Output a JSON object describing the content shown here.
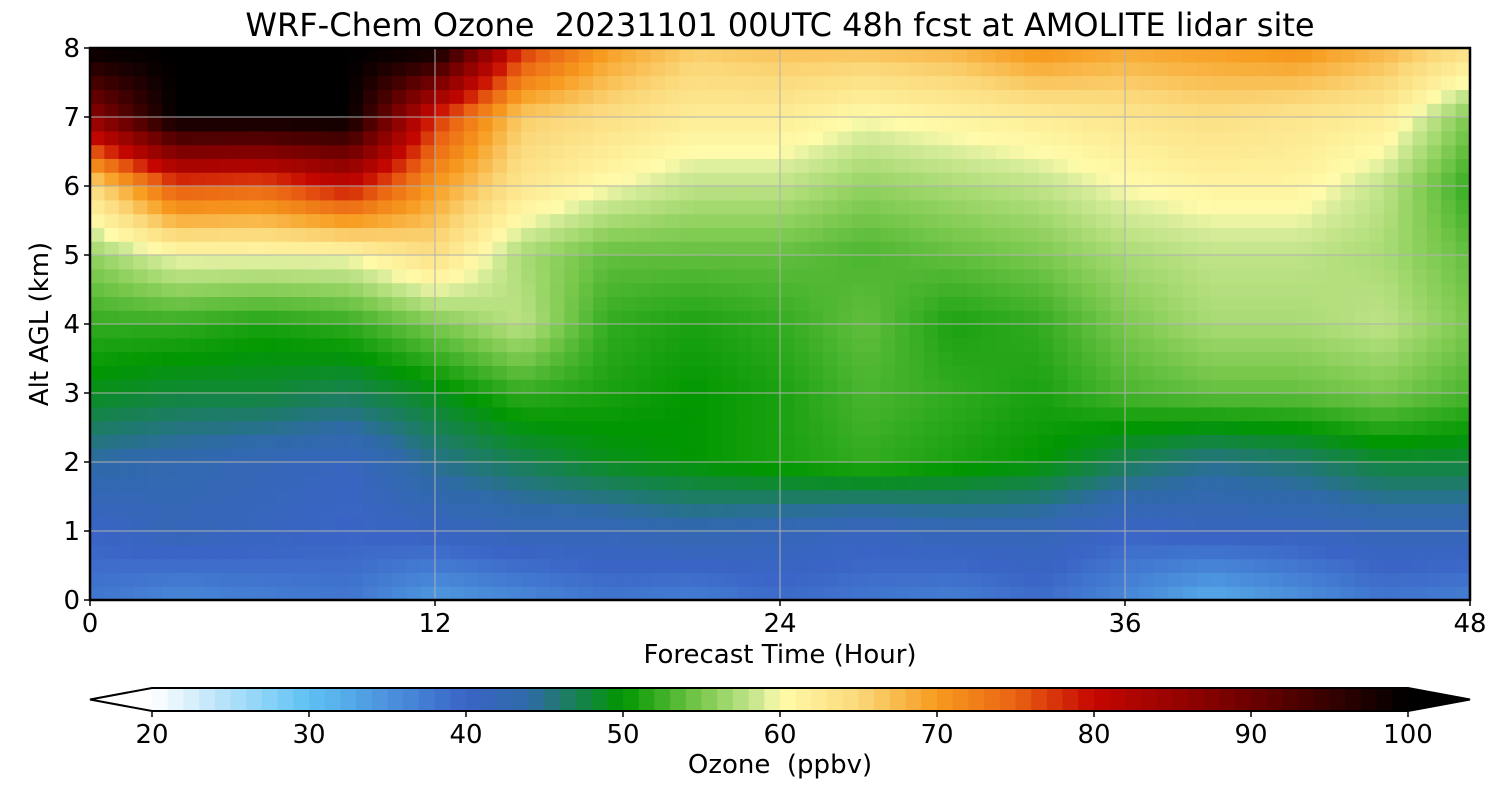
{
  "chart_data": {
    "type": "heatmap",
    "title": "WRF-Chem Ozone  20231101 00UTC 48h fcst at AMOLITE lidar site",
    "xlabel": "Forecast Time (Hour)",
    "ylabel": "Alt AGL (km)",
    "xlim": [
      0,
      48
    ],
    "ylim": [
      0,
      8
    ],
    "xticks": [
      0,
      12,
      24,
      36,
      48
    ],
    "yticks": [
      0,
      1,
      2,
      3,
      4,
      5,
      6,
      7,
      8
    ],
    "grid": true,
    "x": [
      0,
      3,
      6,
      9,
      12,
      15,
      18,
      21,
      24,
      27,
      30,
      33,
      36,
      39,
      42,
      45,
      48
    ],
    "y": [
      0,
      1,
      2,
      3,
      4,
      5,
      6,
      7,
      8
    ],
    "z": [
      [
        38,
        36,
        37,
        38,
        34,
        36,
        38,
        37,
        39,
        38,
        37,
        39,
        36,
        32,
        35,
        38,
        37
      ],
      [
        40,
        42,
        41,
        40,
        41,
        42,
        42,
        43,
        42,
        41,
        42,
        42,
        40,
        41,
        41,
        42,
        42
      ],
      [
        44,
        43,
        42,
        41,
        45,
        47,
        49,
        50,
        51,
        52,
        51,
        50,
        47,
        45,
        46,
        48,
        48
      ],
      [
        49,
        48,
        48,
        47,
        49,
        52,
        51,
        50,
        51,
        53,
        52,
        51,
        53,
        54,
        54,
        55,
        53
      ],
      [
        52,
        52,
        51,
        52,
        55,
        58,
        52,
        51,
        52,
        54,
        51,
        52,
        55,
        57,
        57,
        58,
        55
      ],
      [
        56,
        60,
        60,
        60,
        64,
        57,
        54,
        54,
        54,
        53,
        54,
        55,
        57,
        58,
        58,
        57,
        54
      ],
      [
        64,
        76,
        75,
        80,
        70,
        63,
        60,
        58,
        58,
        56,
        57,
        58,
        60,
        61,
        61,
        58,
        52
      ],
      [
        86,
        100,
        100,
        100,
        78,
        66,
        64,
        62,
        62,
        60,
        61,
        62,
        63,
        64,
        63,
        62,
        55
      ],
      [
        100,
        100,
        100,
        100,
        100,
        78,
        70,
        66,
        67,
        67,
        68,
        71,
        69,
        70,
        71,
        68,
        64
      ]
    ],
    "colorbar": {
      "label": "Ozone  (ppbv)",
      "min": 20,
      "max": 100,
      "extend": "both",
      "ticks": [
        20,
        30,
        40,
        50,
        60,
        70,
        80,
        90,
        100
      ],
      "colors": [
        [
          20,
          "#ffffff"
        ],
        [
          30,
          "#5ec1f4"
        ],
        [
          40,
          "#3a64c6"
        ],
        [
          44,
          "#2f6aa8"
        ],
        [
          50,
          "#019700"
        ],
        [
          55,
          "#7bc94e"
        ],
        [
          59,
          "#d6ec9a"
        ],
        [
          60,
          "#fffbaa"
        ],
        [
          65,
          "#fbd87a"
        ],
        [
          70,
          "#f79b1e"
        ],
        [
          75,
          "#ea6213"
        ],
        [
          80,
          "#c50600"
        ],
        [
          90,
          "#6c0000"
        ],
        [
          100,
          "#000000"
        ]
      ]
    }
  }
}
